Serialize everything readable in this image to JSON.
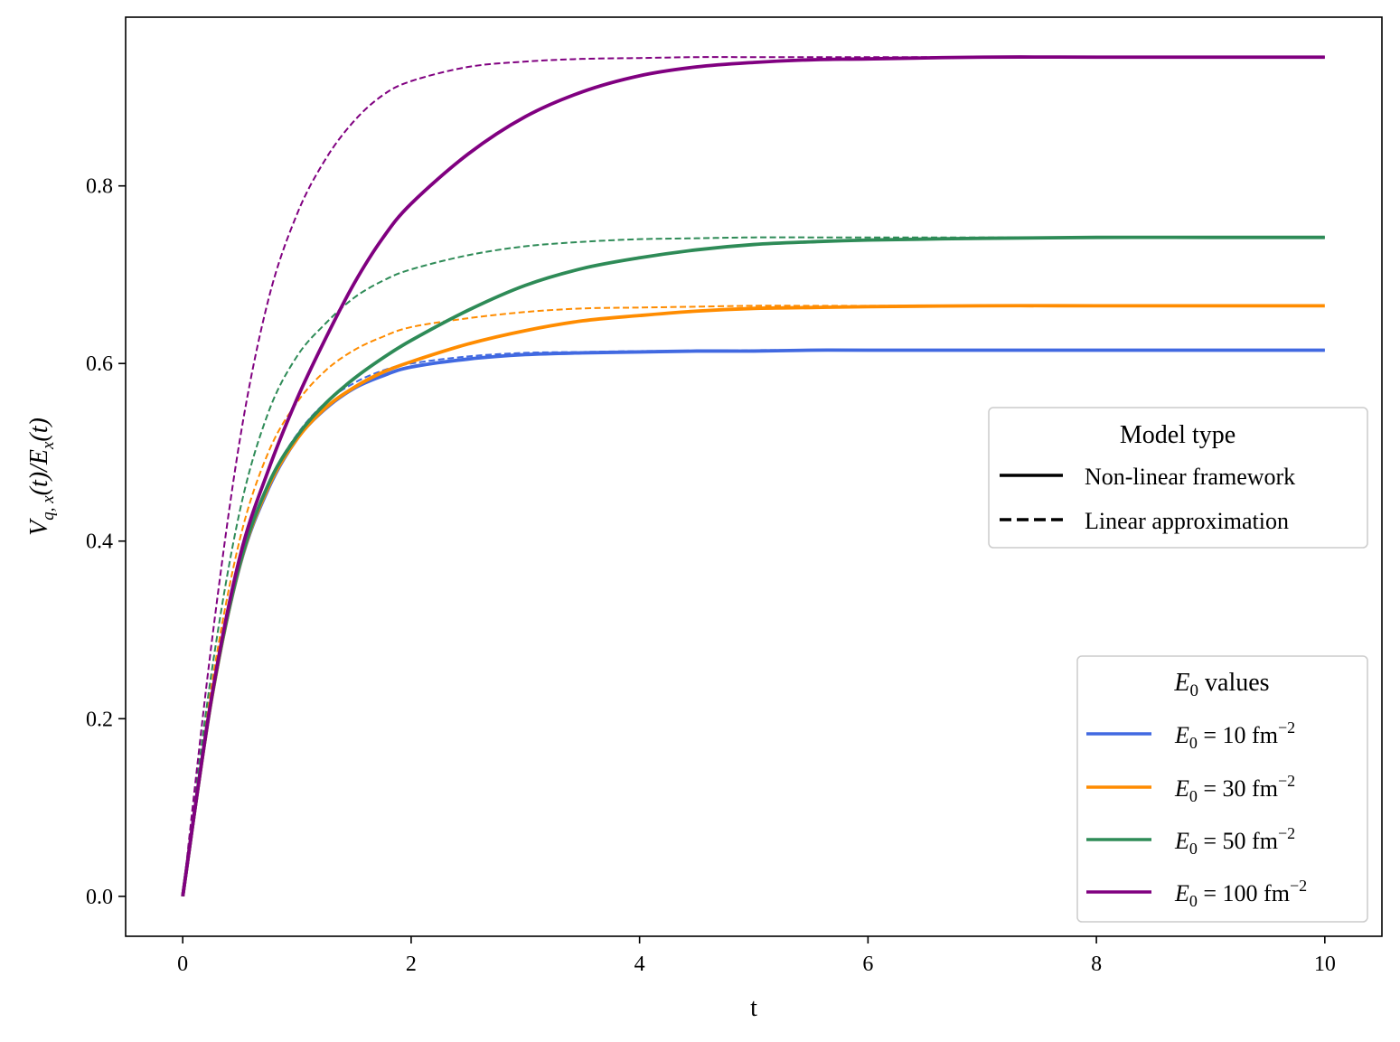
{
  "chart_data": {
    "type": "line",
    "xlabel": "t",
    "ylabel": {
      "main": "V",
      "sub": "q, x",
      "mid": "(t)/",
      "main2": "E",
      "sub2": "x",
      "tail": "(t)"
    },
    "xlim": [
      -0.5,
      10.5
    ],
    "ylim": [
      -0.045,
      0.99
    ],
    "xticks": [
      0,
      2,
      4,
      6,
      8,
      10
    ],
    "xtick_labels": [
      "0",
      "2",
      "4",
      "6",
      "8",
      "10"
    ],
    "yticks": [
      0.0,
      0.2,
      0.4,
      0.6,
      0.8
    ],
    "ytick_labels": [
      "0.0",
      "0.2",
      "0.4",
      "0.6",
      "0.8"
    ],
    "grid": false,
    "legends": [
      {
        "title": "Model type",
        "placement": "center-right",
        "entries": [
          {
            "label": "Non-linear framework",
            "style": "solid",
            "color": "#000000"
          },
          {
            "label": "Linear approximation",
            "style": "dashed",
            "color": "#000000"
          }
        ]
      },
      {
        "title_math": "E",
        "title_sub": "0",
        "title_rest": " values",
        "placement": "bottom-right",
        "entries": [
          {
            "E": "E",
            "sub": "0",
            "rest": " = 10 fm",
            "sup": "−2",
            "color": "#4169E1"
          },
          {
            "E": "E",
            "sub": "0",
            "rest": " = 30 fm",
            "sup": "−2",
            "color": "#FF8C00"
          },
          {
            "E": "E",
            "sub": "0",
            "rest": " = 50 fm",
            "sup": "−2",
            "color": "#2E8B57"
          },
          {
            "E": "E",
            "sub": "0",
            "rest": " = 100 fm",
            "sup": "−2",
            "color": "#800080"
          }
        ]
      }
    ],
    "x": [
      0,
      0.25,
      0.5,
      0.75,
      1.0,
      1.25,
      1.5,
      1.75,
      2.0,
      2.5,
      3.0,
      3.5,
      4.0,
      4.5,
      5.0,
      5.5,
      6.0,
      7.0,
      8.0,
      9.0,
      10.0
    ],
    "series": [
      {
        "E0": 10,
        "model": "non-linear",
        "style": "solid",
        "color": "#4169E1",
        "values": [
          0,
          0.22,
          0.372,
          0.459,
          0.515,
          0.549,
          0.572,
          0.586,
          0.596,
          0.605,
          0.61,
          0.612,
          0.613,
          0.614,
          0.614,
          0.615,
          0.615,
          0.615,
          0.615,
          0.615,
          0.615
        ]
      },
      {
        "E0": 10,
        "model": "linear",
        "style": "dashed",
        "color": "#4169E1",
        "values": [
          0,
          0.222,
          0.376,
          0.465,
          0.52,
          0.556,
          0.578,
          0.592,
          0.6,
          0.608,
          0.612,
          0.613,
          0.614,
          0.614,
          0.615,
          0.615,
          0.615,
          0.615,
          0.615,
          0.615,
          0.615
        ]
      },
      {
        "E0": 30,
        "model": "non-linear",
        "style": "solid",
        "color": "#FF8C00",
        "values": [
          0,
          0.22,
          0.373,
          0.461,
          0.515,
          0.55,
          0.573,
          0.59,
          0.602,
          0.622,
          0.637,
          0.648,
          0.654,
          0.659,
          0.662,
          0.663,
          0.664,
          0.665,
          0.665,
          0.665,
          0.665
        ]
      },
      {
        "E0": 30,
        "model": "linear",
        "style": "dashed",
        "color": "#FF8C00",
        "values": [
          0,
          0.235,
          0.402,
          0.5,
          0.556,
          0.592,
          0.615,
          0.63,
          0.641,
          0.651,
          0.658,
          0.662,
          0.663,
          0.664,
          0.665,
          0.665,
          0.665,
          0.665,
          0.665,
          0.665,
          0.665
        ]
      },
      {
        "E0": 50,
        "model": "non-linear",
        "style": "solid",
        "color": "#2E8B57",
        "values": [
          0,
          0.221,
          0.374,
          0.464,
          0.518,
          0.555,
          0.583,
          0.606,
          0.626,
          0.66,
          0.688,
          0.707,
          0.719,
          0.728,
          0.734,
          0.737,
          0.739,
          0.741,
          0.742,
          0.742,
          0.742
        ]
      },
      {
        "E0": 50,
        "model": "linear",
        "style": "dashed",
        "color": "#2E8B57",
        "values": [
          0,
          0.25,
          0.434,
          0.545,
          0.608,
          0.645,
          0.674,
          0.693,
          0.706,
          0.722,
          0.732,
          0.737,
          0.74,
          0.741,
          0.742,
          0.742,
          0.742,
          0.742,
          0.742,
          0.742,
          0.742
        ]
      },
      {
        "E0": 100,
        "model": "non-linear",
        "style": "solid",
        "color": "#800080",
        "values": [
          0,
          0.222,
          0.382,
          0.48,
          0.56,
          0.628,
          0.69,
          0.741,
          0.78,
          0.836,
          0.878,
          0.906,
          0.924,
          0.934,
          0.939,
          0.942,
          0.943,
          0.945,
          0.945,
          0.945,
          0.945
        ]
      },
      {
        "E0": 100,
        "model": "linear",
        "style": "dashed",
        "color": "#800080",
        "values": [
          0,
          0.282,
          0.514,
          0.672,
          0.768,
          0.83,
          0.873,
          0.902,
          0.918,
          0.934,
          0.94,
          0.943,
          0.944,
          0.945,
          0.945,
          0.945,
          0.945,
          0.945,
          0.945,
          0.945,
          0.945
        ]
      }
    ]
  }
}
